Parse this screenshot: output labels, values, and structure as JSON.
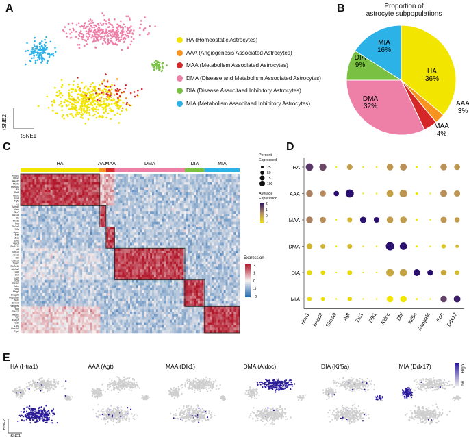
{
  "colors": {
    "HA": "#f2e600",
    "AAA": "#f7931e",
    "MAA": "#d62728",
    "DMA": "#ee7fa7",
    "DIA": "#7ac143",
    "MIA": "#2db2e8",
    "heat_high": "#b2182b",
    "heat_low": "#2166ac",
    "dot_high": "#2b0f6e",
    "dot_mid": "#b58a5e",
    "dot_low": "#f2e600",
    "feature_high": "#2b1b9a",
    "feature_low": "#cfcfcf"
  },
  "panels": {
    "A": "A",
    "B": "B",
    "C": "C",
    "D": "D",
    "E": "E"
  },
  "panelA": {
    "axis_y": "tSNE2",
    "axis_x": "tSNE1",
    "legend": [
      {
        "key": "HA",
        "label": "HA (Homeostatic Astrocytes)"
      },
      {
        "key": "AAA",
        "label": "AAA (Angiogenesis Associated Astrocytes)"
      },
      {
        "key": "MAA",
        "label": "MAA (Metabolism Associated Astrocytes)"
      },
      {
        "key": "DMA",
        "label": "DMA (Disease and Metabolism Associated Astrocytes)"
      },
      {
        "key": "DIA",
        "label": "DIA (Disease Associtaed Inhibitory Astrocytes)"
      },
      {
        "key": "MIA",
        "label": "MIA (Metabolism Associtaed Inhibitory Astrocytes)"
      }
    ]
  },
  "chart_data": [
    {
      "type": "pie",
      "title_line1": "Proportion of",
      "title_line2": "astrocyte subpopulations",
      "slices": [
        {
          "name": "HA",
          "value": 36,
          "label": "36%"
        },
        {
          "name": "AAA",
          "value": 3,
          "label": "3%"
        },
        {
          "name": "MAA",
          "value": 4,
          "label": "4%"
        },
        {
          "name": "DMA",
          "value": 32,
          "label": "32%"
        },
        {
          "name": "DIA",
          "value": 9,
          "label": "9%"
        },
        {
          "name": "MIA",
          "value": 16,
          "label": "16%"
        }
      ]
    },
    {
      "type": "heatmap",
      "groups": [
        "HA",
        "AAA",
        "MAA",
        "DMA",
        "DIA",
        "MIA"
      ],
      "legend_title": "Expression",
      "legend_ticks": [
        "2",
        "1",
        "0",
        "-1",
        "-2"
      ],
      "genes": [
        "Mobp1",
        "Htra1",
        "Hacd2",
        "Mertk",
        "Marco1",
        "F3",
        "Cst3",
        "Ntsr2",
        "Sox9",
        "Fgf1",
        "C1",
        "Mfsd2",
        "Nrep",
        "Stx7",
        "Shisa9",
        "Clu",
        "Ptgds",
        "Mt3",
        "Slc1a2",
        "Nfia",
        "Apoe",
        "Tcf7",
        "Zic1",
        "Dlk1",
        "Gpc5",
        "Slc6a11",
        "Id3",
        "Kcnj10",
        "Aldoc",
        "Dbi",
        "Cldn10",
        "Sparc",
        "Slc7a11",
        "Atp1a2",
        "Ckb",
        "Glul",
        "Cst3",
        "Kif5a",
        "Nrxn1",
        "Mbp",
        "Rtn1",
        "Meg3",
        "Snap25",
        "Rap1gap",
        "Syt1",
        "Stmn2",
        "Rangef4",
        "Son",
        "Ddx17",
        "Malat1",
        "Tnc",
        "Fabp7",
        "Cd9",
        "Lrp1",
        "Ahnak2",
        "Egr1"
      ]
    },
    {
      "type": "dotplot",
      "rows": [
        "HA",
        "AAA",
        "MAA",
        "DMA",
        "DIA",
        "MIA"
      ],
      "genes": [
        "Htra1",
        "Hacd2",
        "Shisa9",
        "Agt",
        "Zic1",
        "Dlk1",
        "Aldoc",
        "Dbi",
        "Kif5a",
        "Rapgef4",
        "Son",
        "Ddx17"
      ],
      "legend_pct_title": "Percent Expressed",
      "legend_pct": [
        25,
        50,
        75,
        100
      ],
      "legend_avg_title": "Average Expression",
      "legend_avg_ticks": [
        "2",
        "1",
        "0",
        "-1"
      ],
      "avg": [
        [
          1.5,
          1.3,
          -1,
          0.2,
          -1,
          -1,
          0.3,
          0.4,
          -1,
          -1,
          0.4,
          0.3
        ],
        [
          0.6,
          0.5,
          2.0,
          2.0,
          -1,
          -1,
          0.1,
          0.3,
          -1,
          -1,
          0.4,
          0.3
        ],
        [
          0.6,
          0.4,
          -1,
          -0.2,
          2.0,
          2.0,
          0.2,
          0.2,
          -1,
          -1,
          0.3,
          0.2
        ],
        [
          -0.2,
          -0.2,
          -1,
          -0.3,
          -1,
          -1,
          2.0,
          2.0,
          -1,
          -1,
          -0.5,
          -0.3
        ],
        [
          -0.8,
          -0.8,
          -1,
          -0.8,
          -1,
          -1,
          0.0,
          0.1,
          2.0,
          2.0,
          0.0,
          -0.3
        ],
        [
          -0.9,
          -0.9,
          -1,
          -0.8,
          -1,
          -1,
          -1.0,
          -1.0,
          -1,
          -1,
          1.4,
          1.8
        ]
      ],
      "pct": [
        [
          70,
          65,
          3,
          40,
          3,
          3,
          55,
          60,
          5,
          3,
          55,
          45
        ],
        [
          55,
          45,
          35,
          85,
          3,
          3,
          60,
          75,
          8,
          3,
          60,
          50
        ],
        [
          55,
          45,
          3,
          30,
          50,
          40,
          55,
          55,
          5,
          3,
          50,
          35
        ],
        [
          45,
          30,
          3,
          30,
          3,
          3,
          90,
          70,
          5,
          3,
          25,
          15
        ],
        [
          35,
          25,
          3,
          30,
          3,
          3,
          75,
          70,
          60,
          45,
          45,
          30
        ],
        [
          25,
          20,
          3,
          25,
          3,
          3,
          55,
          55,
          5,
          3,
          55,
          60
        ]
      ]
    },
    {
      "type": "scatter",
      "panel": "E",
      "legend_high": "High",
      "legend_low": "Low",
      "axis_y": "tSNE2",
      "axis_x": "tSNE1",
      "maps": [
        {
          "title": "HA (Htra1)",
          "cluster": "HA"
        },
        {
          "title": "AAA (Agt)",
          "cluster": "AAA"
        },
        {
          "title": "MAA (Dlk1)",
          "cluster": "MAA"
        },
        {
          "title": "DMA (Aldoc)",
          "cluster": "DMA"
        },
        {
          "title": "DIA (Kif5a)",
          "cluster": "DIA"
        },
        {
          "title": "MIA (Ddx17)",
          "cluster": "MIA"
        }
      ]
    }
  ]
}
